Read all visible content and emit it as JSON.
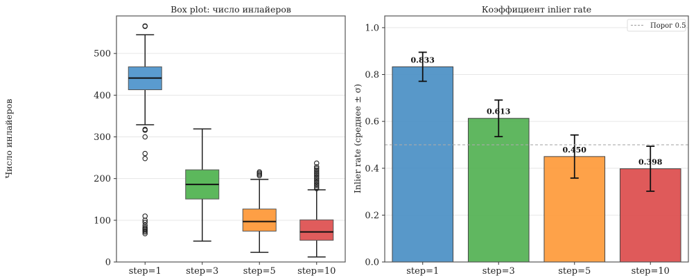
{
  "chart_data": [
    {
      "type": "box",
      "title": "Box plot: число инлайеров",
      "xlabel": "",
      "ylabel": "Число инлайеров",
      "ylim": [
        0,
        590
      ],
      "yticks": [
        0,
        100,
        200,
        300,
        400,
        500
      ],
      "ytick_labels": [
        "0",
        "100",
        "200",
        "300",
        "400",
        "500"
      ],
      "grid": true,
      "categories": [
        "step=1",
        "step=3",
        "step=5",
        "step=10"
      ],
      "colors": [
        "#5a9bcf",
        "#5cb85c",
        "#fe9f45",
        "#e05c5c"
      ],
      "boxes": [
        {
          "label": "step=1",
          "whisker_low": 329,
          "q1": 413,
          "median": 441,
          "q3": 468,
          "whisker_high": 545,
          "outliers": [
            565,
            566,
            318,
            316,
            300,
            260,
            248,
            110,
            100,
            95,
            88,
            83,
            80,
            78,
            75,
            72,
            68
          ]
        },
        {
          "label": "step=3",
          "whisker_low": 50,
          "q1": 151,
          "median": 186,
          "q3": 221,
          "whisker_high": 319,
          "outliers": []
        },
        {
          "label": "step=5",
          "whisker_low": 23,
          "q1": 74,
          "median": 97,
          "q3": 127,
          "whisker_high": 198,
          "outliers": [
            207,
            210,
            213,
            216
          ]
        },
        {
          "label": "step=10",
          "whisker_low": 12,
          "q1": 52,
          "median": 72,
          "q3": 101,
          "whisker_high": 173,
          "outliers": [
            176,
            180,
            184,
            188,
            192,
            196,
            200,
            204,
            208,
            212,
            216,
            220,
            224,
            228,
            237
          ]
        }
      ]
    },
    {
      "type": "bar",
      "title": "Коэффициент inlier rate",
      "xlabel": "",
      "ylabel": "Inlier rate (среднее ± σ)",
      "ylim": [
        0,
        1.05
      ],
      "yticks": [
        0.0,
        0.2,
        0.4,
        0.6,
        0.8,
        1.0
      ],
      "ytick_labels": [
        "0.0",
        "0.2",
        "0.4",
        "0.6",
        "0.8",
        "1.0"
      ],
      "grid": true,
      "categories": [
        "step=1",
        "step=3",
        "step=5",
        "step=10"
      ],
      "values": [
        0.833,
        0.613,
        0.45,
        0.398
      ],
      "value_labels": [
        "0.833",
        "0.613",
        "0.450",
        "0.398"
      ],
      "errors": [
        0.062,
        0.078,
        0.092,
        0.096
      ],
      "colors": [
        "#4a8fc4",
        "#52b152",
        "#fe9a3a",
        "#dc4c4c"
      ],
      "threshold": {
        "value": 0.5,
        "label": "Порог 0.5"
      },
      "legend": {
        "placement": "top-right",
        "entries": [
          "Порог 0.5"
        ]
      }
    }
  ]
}
